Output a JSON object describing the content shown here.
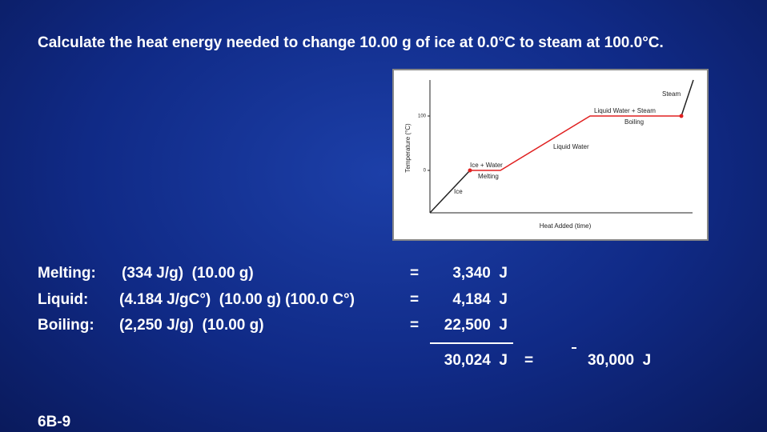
{
  "title": "Calculate the heat energy needed to change 10.00 g of ice at 0.0°C to steam at 100.0°C.",
  "figure": {
    "y_axis_label": "Temperature (°C)",
    "x_axis_label": "Heat Added (time)",
    "y_ticks": [
      "100",
      "0"
    ],
    "labels": [
      "Steam",
      "Liquid Water + Steam",
      "Boiling",
      "Liquid Water",
      "Ice + Water",
      "Melting",
      "Ice"
    ]
  },
  "rows": [
    {
      "label": "Melting:",
      "expression": "(334 J/g)  (10.00 g)",
      "equals": "=",
      "result": "3,340  J"
    },
    {
      "label": "Liquid:",
      "expression": "(4.184 J/gC°)  (10.00 g) (100.0 C°)",
      "equals": "=",
      "result": "4,184  J"
    },
    {
      "label": "Boiling:",
      "expression": "(2,250 J/g)  (10.00 g)",
      "equals": "=",
      "result": "22,500  J"
    }
  ],
  "total": {
    "result": "30,024  J",
    "equals": "=",
    "rounded": "30,000  J"
  },
  "slide_number": "6B-9"
}
